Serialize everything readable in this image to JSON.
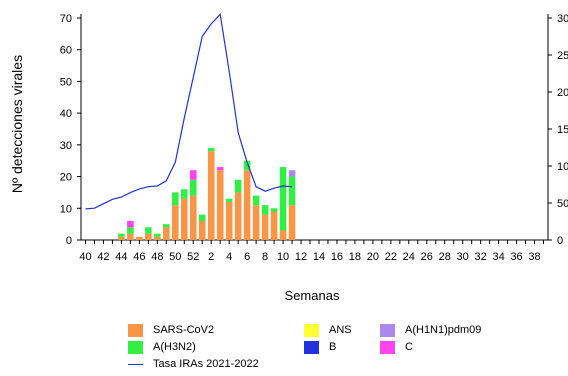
{
  "chart_data": {
    "type": "bar",
    "stacked": true,
    "ylabel": "Nº detecciones virales",
    "xlabel": "Semanas",
    "ylim": [
      0,
      70
    ],
    "yticks": [
      0,
      10,
      20,
      30,
      40,
      50,
      60,
      70
    ],
    "y2lim": [
      0,
      300
    ],
    "y2ticks": [
      0,
      50,
      100,
      150,
      200,
      250,
      300
    ],
    "y2tick_labels_visible": [
      "0",
      "50",
      "100",
      "150",
      "200",
      "250",
      "300"
    ],
    "categories": [
      40,
      41,
      42,
      43,
      44,
      45,
      46,
      47,
      48,
      49,
      50,
      51,
      52,
      1,
      2,
      3,
      4,
      5,
      6,
      7,
      8,
      9,
      10,
      11,
      12,
      13,
      14,
      15,
      16,
      17,
      18,
      19,
      20,
      21,
      22,
      23,
      24,
      25,
      26,
      27,
      28,
      29,
      30,
      31,
      32,
      33,
      34,
      35,
      36,
      37,
      38,
      39
    ],
    "xtick_labels": [
      "40",
      "42",
      "44",
      "46",
      "48",
      "50",
      "52",
      "2",
      "4",
      "6",
      "8",
      "10",
      "12",
      "14",
      "16",
      "18",
      "20",
      "22",
      "24",
      "26",
      "28",
      "30",
      "32",
      "34",
      "36",
      "38"
    ],
    "series": [
      {
        "name": "SARS-CoV2",
        "color": "#f79646",
        "values": [
          0,
          0,
          0,
          0,
          1,
          2,
          1,
          2,
          1,
          4,
          11,
          13,
          14,
          6,
          28,
          22,
          12,
          15,
          22,
          11,
          8,
          9,
          3,
          11,
          0,
          0,
          0,
          0,
          0,
          0,
          0,
          0,
          0,
          0,
          0,
          0,
          0,
          0,
          0,
          0,
          0,
          0,
          0,
          0,
          0,
          0,
          0,
          0,
          0,
          0,
          0,
          0
        ]
      },
      {
        "name": "A(H3N2)",
        "color": "#33ee44",
        "values": [
          0,
          0,
          0,
          0,
          1,
          2,
          0,
          2,
          1,
          1,
          4,
          3,
          5,
          2,
          1,
          0,
          1,
          4,
          3,
          3,
          3,
          1,
          20,
          9,
          0,
          0,
          0,
          0,
          0,
          0,
          0,
          0,
          0,
          0,
          0,
          0,
          0,
          0,
          0,
          0,
          0,
          0,
          0,
          0,
          0,
          0,
          0,
          0,
          0,
          0,
          0,
          0
        ]
      },
      {
        "name": "ANS",
        "color": "#ffff33",
        "values": [
          0,
          0,
          0,
          0,
          0,
          0,
          0,
          0,
          0,
          0,
          0,
          0,
          0,
          0,
          0,
          0,
          0,
          0,
          0,
          0,
          0,
          0,
          0,
          0,
          0,
          0,
          0,
          0,
          0,
          0,
          0,
          0,
          0,
          0,
          0,
          0,
          0,
          0,
          0,
          0,
          0,
          0,
          0,
          0,
          0,
          0,
          0,
          0,
          0,
          0,
          0,
          0
        ]
      },
      {
        "name": "B",
        "color": "#2233dd",
        "values": [
          0,
          0,
          0,
          0,
          0,
          0,
          0,
          0,
          0,
          0,
          0,
          0,
          0,
          0,
          0,
          0,
          0,
          0,
          0,
          0,
          0,
          0,
          0,
          0,
          0,
          0,
          0,
          0,
          0,
          0,
          0,
          0,
          0,
          0,
          0,
          0,
          0,
          0,
          0,
          0,
          0,
          0,
          0,
          0,
          0,
          0,
          0,
          0,
          0,
          0,
          0,
          0
        ]
      },
      {
        "name": "A(H1N1)pdm09",
        "color": "#aa88ee",
        "values": [
          0,
          0,
          0,
          0,
          0,
          0,
          0,
          0,
          0,
          0,
          0,
          0,
          0,
          0,
          0,
          0,
          0,
          0,
          0,
          0,
          0,
          0,
          0,
          2,
          0,
          0,
          0,
          0,
          0,
          0,
          0,
          0,
          0,
          0,
          0,
          0,
          0,
          0,
          0,
          0,
          0,
          0,
          0,
          0,
          0,
          0,
          0,
          0,
          0,
          0,
          0,
          0
        ]
      },
      {
        "name": "C",
        "color": "#ff44ee",
        "values": [
          0,
          0,
          0,
          0,
          0,
          2,
          0,
          0,
          0,
          0,
          0,
          0,
          3,
          0,
          0,
          1,
          0,
          0,
          0,
          0,
          0,
          0,
          0,
          0,
          0,
          0,
          0,
          0,
          0,
          0,
          0,
          0,
          0,
          0,
          0,
          0,
          0,
          0,
          0,
          0,
          0,
          0,
          0,
          0,
          0,
          0,
          0,
          0,
          0,
          0,
          0,
          0
        ]
      }
    ],
    "line": {
      "name": "Tasa IRAs 2021-2022",
      "color": "#2233cc",
      "axis": "right",
      "values": [
        42,
        43,
        49,
        55,
        58,
        64,
        69,
        72,
        73,
        80,
        105,
        165,
        220,
        275,
        292,
        305,
        228,
        145,
        105,
        72,
        66,
        70,
        73,
        72
      ]
    },
    "legend": {
      "sars": "SARS-CoV2",
      "h3n2": "A(H3N2)",
      "tasa": "Tasa IRAs 2021-2022",
      "ans": "ANS",
      "b": "B",
      "h1n1": "A(H1N1)pdm09",
      "c": "C"
    }
  }
}
